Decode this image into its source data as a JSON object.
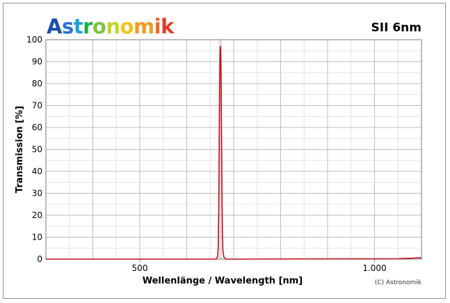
{
  "chart_data": {
    "type": "line",
    "title": "SII 6nm",
    "brand": "Astronomik",
    "brand_colors": [
      "#1f4fa8",
      "#2a6fd6",
      "#1ea0d8",
      "#18b14a",
      "#7cc242",
      "#c7d22e",
      "#f2c21b",
      "#f39a1e",
      "#ec6a1f",
      "#e23b2a",
      "#c8202f"
    ],
    "xlabel": "Wellenlänge / Wavelength [nm]",
    "ylabel": "Transmission [%]",
    "credit": "(C) Astronomik",
    "xlim": [
      300,
      1100
    ],
    "ylim": [
      0,
      100
    ],
    "x_ticks": [
      {
        "value": 500,
        "label": "500"
      },
      {
        "value": 1000,
        "label": "1.000"
      }
    ],
    "y_ticks": [
      0,
      10,
      20,
      30,
      40,
      50,
      60,
      70,
      80,
      90,
      100
    ],
    "x_minor_grid_step": 50,
    "y_minor_grid_step": 5,
    "grid": true,
    "line_color": "#c0101a",
    "band_color": "#b8b8b8",
    "series": [
      {
        "values_x": [
          300,
          660,
          664,
          666,
          667,
          668,
          669,
          670,
          671,
          671.5,
          672,
          672.5,
          673,
          674,
          675,
          676,
          677,
          679,
          683,
          700,
          1050,
          1100
        ],
        "values_y": [
          0,
          0,
          0.3,
          1.5,
          6,
          20,
          48,
          78,
          94,
          97,
          96,
          93,
          85,
          60,
          32,
          12,
          4,
          1,
          0,
          0,
          0.2,
          0.6
        ]
      }
    ],
    "band": {
      "x_start": 668,
      "x_end": 675
    }
  }
}
